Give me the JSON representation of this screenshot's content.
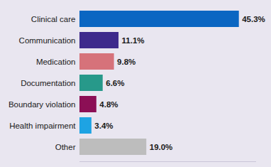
{
  "chart_data": {
    "type": "bar",
    "orientation": "horizontal",
    "categories": [
      "Clinical care",
      "Communication",
      "Medication",
      "Documentation",
      "Boundary violation",
      "Health impairment",
      "Other"
    ],
    "values": [
      45.3,
      11.1,
      9.8,
      6.6,
      4.8,
      3.4,
      19.0
    ],
    "value_labels": [
      "45.3%",
      "11.1%",
      "9.8%",
      "6.6%",
      "4.8%",
      "3.4%",
      "19.0%"
    ],
    "colors": [
      "#0a66c2",
      "#3e2a8c",
      "#d6727a",
      "#27998a",
      "#8c0f55",
      "#1ea3e3",
      "#bdbdbd"
    ],
    "xlim": [
      0,
      50
    ],
    "data_labels": true,
    "tick_labels": "y"
  }
}
